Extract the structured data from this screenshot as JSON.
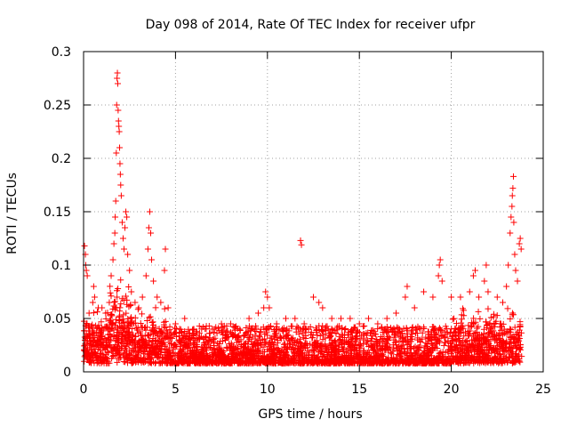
{
  "chart_data": {
    "type": "scatter",
    "title": "Day 098 of 2014, Rate Of TEC Index for receiver ufpr",
    "xlabel": "GPS time / hours",
    "ylabel": "ROTI / TECUs",
    "xlim": [
      0,
      25
    ],
    "ylim": [
      0,
      0.3
    ],
    "xticks": [
      0,
      5,
      10,
      15,
      20,
      25
    ],
    "xtick_labels": [
      "0",
      "5",
      "10",
      "15",
      "20",
      "25"
    ],
    "yticks": [
      0,
      0.05,
      0.1,
      0.15,
      0.2,
      0.25,
      0.3
    ],
    "ytick_labels": [
      "0",
      "0.05",
      "0.1",
      "0.15",
      "0.2",
      "0.25",
      "0.3"
    ],
    "grid": true,
    "marker": "plus",
    "color": "#ff0000",
    "series": [
      {
        "name": "ROTI",
        "note": "dense baseline 0.008-0.05 TECU from 0 to 23.8 h; notable excursions listed as points",
        "points": [
          [
            0.05,
            0.118
          ],
          [
            0.1,
            0.11
          ],
          [
            0.12,
            0.1
          ],
          [
            0.15,
            0.095
          ],
          [
            0.2,
            0.09
          ],
          [
            0.3,
            0.055
          ],
          [
            0.5,
            0.065
          ],
          [
            0.55,
            0.08
          ],
          [
            0.6,
            0.07
          ],
          [
            0.8,
            0.06
          ],
          [
            1.0,
            0.06
          ],
          [
            1.2,
            0.055
          ],
          [
            1.4,
            0.065
          ],
          [
            1.5,
            0.09
          ],
          [
            1.6,
            0.105
          ],
          [
            1.65,
            0.12
          ],
          [
            1.7,
            0.13
          ],
          [
            1.72,
            0.145
          ],
          [
            1.75,
            0.16
          ],
          [
            1.78,
            0.205
          ],
          [
            1.8,
            0.25
          ],
          [
            1.82,
            0.275
          ],
          [
            1.84,
            0.28
          ],
          [
            1.86,
            0.27
          ],
          [
            1.88,
            0.245
          ],
          [
            1.9,
            0.235
          ],
          [
            1.92,
            0.23
          ],
          [
            1.94,
            0.225
          ],
          [
            1.96,
            0.21
          ],
          [
            1.98,
            0.195
          ],
          [
            2.0,
            0.185
          ],
          [
            2.02,
            0.175
          ],
          [
            2.05,
            0.165
          ],
          [
            2.1,
            0.14
          ],
          [
            2.15,
            0.125
          ],
          [
            2.2,
            0.115
          ],
          [
            2.25,
            0.135
          ],
          [
            2.3,
            0.15
          ],
          [
            2.35,
            0.145
          ],
          [
            2.4,
            0.11
          ],
          [
            2.5,
            0.095
          ],
          [
            2.6,
            0.075
          ],
          [
            2.8,
            0.065
          ],
          [
            3.0,
            0.06
          ],
          [
            3.2,
            0.07
          ],
          [
            3.4,
            0.09
          ],
          [
            3.5,
            0.115
          ],
          [
            3.55,
            0.135
          ],
          [
            3.6,
            0.15
          ],
          [
            3.65,
            0.13
          ],
          [
            3.7,
            0.105
          ],
          [
            3.8,
            0.085
          ],
          [
            4.0,
            0.07
          ],
          [
            4.2,
            0.065
          ],
          [
            4.4,
            0.095
          ],
          [
            4.45,
            0.115
          ],
          [
            4.6,
            0.06
          ],
          [
            5.0,
            0.045
          ],
          [
            5.5,
            0.05
          ],
          [
            6.0,
            0.04
          ],
          [
            6.5,
            0.042
          ],
          [
            7.0,
            0.04
          ],
          [
            7.5,
            0.045
          ],
          [
            8.0,
            0.045
          ],
          [
            8.5,
            0.04
          ],
          [
            9.0,
            0.05
          ],
          [
            9.5,
            0.055
          ],
          [
            9.8,
            0.06
          ],
          [
            9.9,
            0.075
          ],
          [
            10.0,
            0.07
          ],
          [
            10.1,
            0.06
          ],
          [
            10.5,
            0.045
          ],
          [
            11.0,
            0.05
          ],
          [
            11.5,
            0.05
          ],
          [
            11.8,
            0.123
          ],
          [
            11.85,
            0.119
          ],
          [
            12.0,
            0.045
          ],
          [
            12.5,
            0.07
          ],
          [
            12.8,
            0.065
          ],
          [
            13.0,
            0.06
          ],
          [
            13.5,
            0.05
          ],
          [
            14.0,
            0.05
          ],
          [
            14.5,
            0.05
          ],
          [
            15.0,
            0.045
          ],
          [
            15.5,
            0.05
          ],
          [
            16.0,
            0.045
          ],
          [
            16.5,
            0.05
          ],
          [
            17.0,
            0.055
          ],
          [
            17.5,
            0.07
          ],
          [
            17.6,
            0.08
          ],
          [
            18.0,
            0.06
          ],
          [
            18.5,
            0.075
          ],
          [
            19.0,
            0.07
          ],
          [
            19.3,
            0.09
          ],
          [
            19.35,
            0.1
          ],
          [
            19.4,
            0.105
          ],
          [
            19.5,
            0.085
          ],
          [
            20.0,
            0.07
          ],
          [
            20.5,
            0.07
          ],
          [
            21.0,
            0.075
          ],
          [
            21.2,
            0.09
          ],
          [
            21.3,
            0.095
          ],
          [
            21.5,
            0.07
          ],
          [
            21.8,
            0.085
          ],
          [
            21.9,
            0.1
          ],
          [
            22.0,
            0.075
          ],
          [
            22.5,
            0.07
          ],
          [
            22.8,
            0.065
          ],
          [
            23.0,
            0.08
          ],
          [
            23.1,
            0.1
          ],
          [
            23.2,
            0.13
          ],
          [
            23.25,
            0.145
          ],
          [
            23.3,
            0.155
          ],
          [
            23.32,
            0.165
          ],
          [
            23.35,
            0.172
          ],
          [
            23.38,
            0.183
          ],
          [
            23.4,
            0.14
          ],
          [
            23.45,
            0.11
          ],
          [
            23.5,
            0.095
          ],
          [
            23.6,
            0.085
          ],
          [
            23.7,
            0.12
          ],
          [
            23.75,
            0.125
          ],
          [
            23.8,
            0.115
          ]
        ]
      }
    ]
  }
}
